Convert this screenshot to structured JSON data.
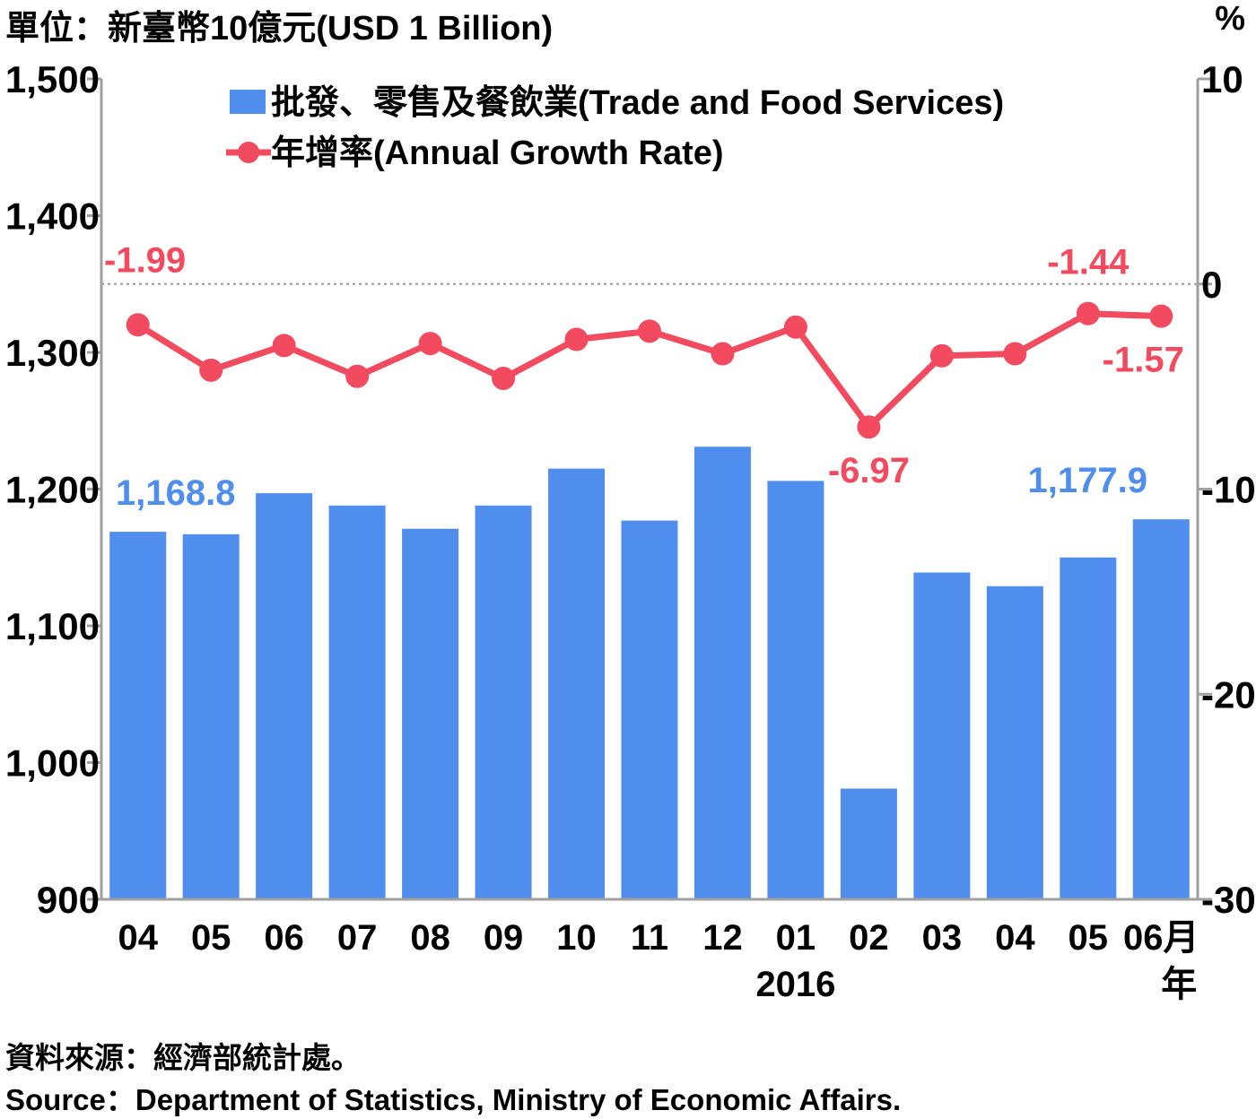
{
  "unit_label": "單位：新臺幣10億元(USD 1 Billion)",
  "right_unit_label": "%",
  "source_zh": "資料來源：經濟部統計處。",
  "source_en": "Source：Department of Statistics, Ministry of Economic Affairs.",
  "colors": {
    "bar": "#4f8eed",
    "line": "#f24a5f",
    "axis": "#a0a0a0",
    "text": "#000000"
  },
  "chart_data": {
    "type": "bar+line",
    "categories": [
      "04",
      "05",
      "06",
      "07",
      "08",
      "09",
      "10",
      "11",
      "12",
      "01",
      "02",
      "03",
      "04",
      "05",
      "06月"
    ],
    "year_label": "2016",
    "month_unit_label": "年",
    "series": [
      {
        "name": "批發、零售及餐飲業(Trade and Food Services)",
        "type": "bar",
        "axis": "left",
        "values": [
          1168.8,
          1167,
          1197,
          1188,
          1171,
          1188,
          1215,
          1177,
          1231,
          1206,
          981,
          1139,
          1129,
          1150,
          1177.9
        ]
      },
      {
        "name": "年增率(Annual Growth Rate)",
        "type": "line",
        "axis": "right",
        "values": [
          -1.99,
          -4.2,
          -3.0,
          -4.5,
          -2.9,
          -4.6,
          -2.7,
          -2.3,
          -3.4,
          -2.1,
          -6.97,
          -3.5,
          -3.4,
          -1.44,
          -1.57
        ]
      }
    ],
    "left_axis": {
      "min": 900,
      "max": 1500,
      "ticks": [
        900,
        1000,
        1100,
        1200,
        1300,
        1400,
        1500
      ],
      "tick_labels": [
        "900",
        "1,000",
        "1,100",
        "1,200",
        "1,300",
        "1,400",
        "1,500"
      ]
    },
    "right_axis": {
      "min": -30,
      "max": 10,
      "ticks": [
        -30,
        -20,
        -10,
        0,
        10
      ],
      "tick_labels": [
        "-30",
        "-20",
        "-10",
        "0",
        "10"
      ]
    },
    "bar_labels": [
      {
        "index": 0,
        "text": "1,168.8"
      },
      {
        "index": 14,
        "text": "1,177.9"
      }
    ],
    "line_labels": [
      {
        "index": 0,
        "text": "-1.99",
        "pos": "above-left"
      },
      {
        "index": 10,
        "text": "-6.97",
        "pos": "below"
      },
      {
        "index": 13,
        "text": "-1.44",
        "pos": "above"
      },
      {
        "index": 14,
        "text": "-1.57",
        "pos": "below"
      }
    ],
    "zero_reference_line": true,
    "legend_position": "top"
  }
}
